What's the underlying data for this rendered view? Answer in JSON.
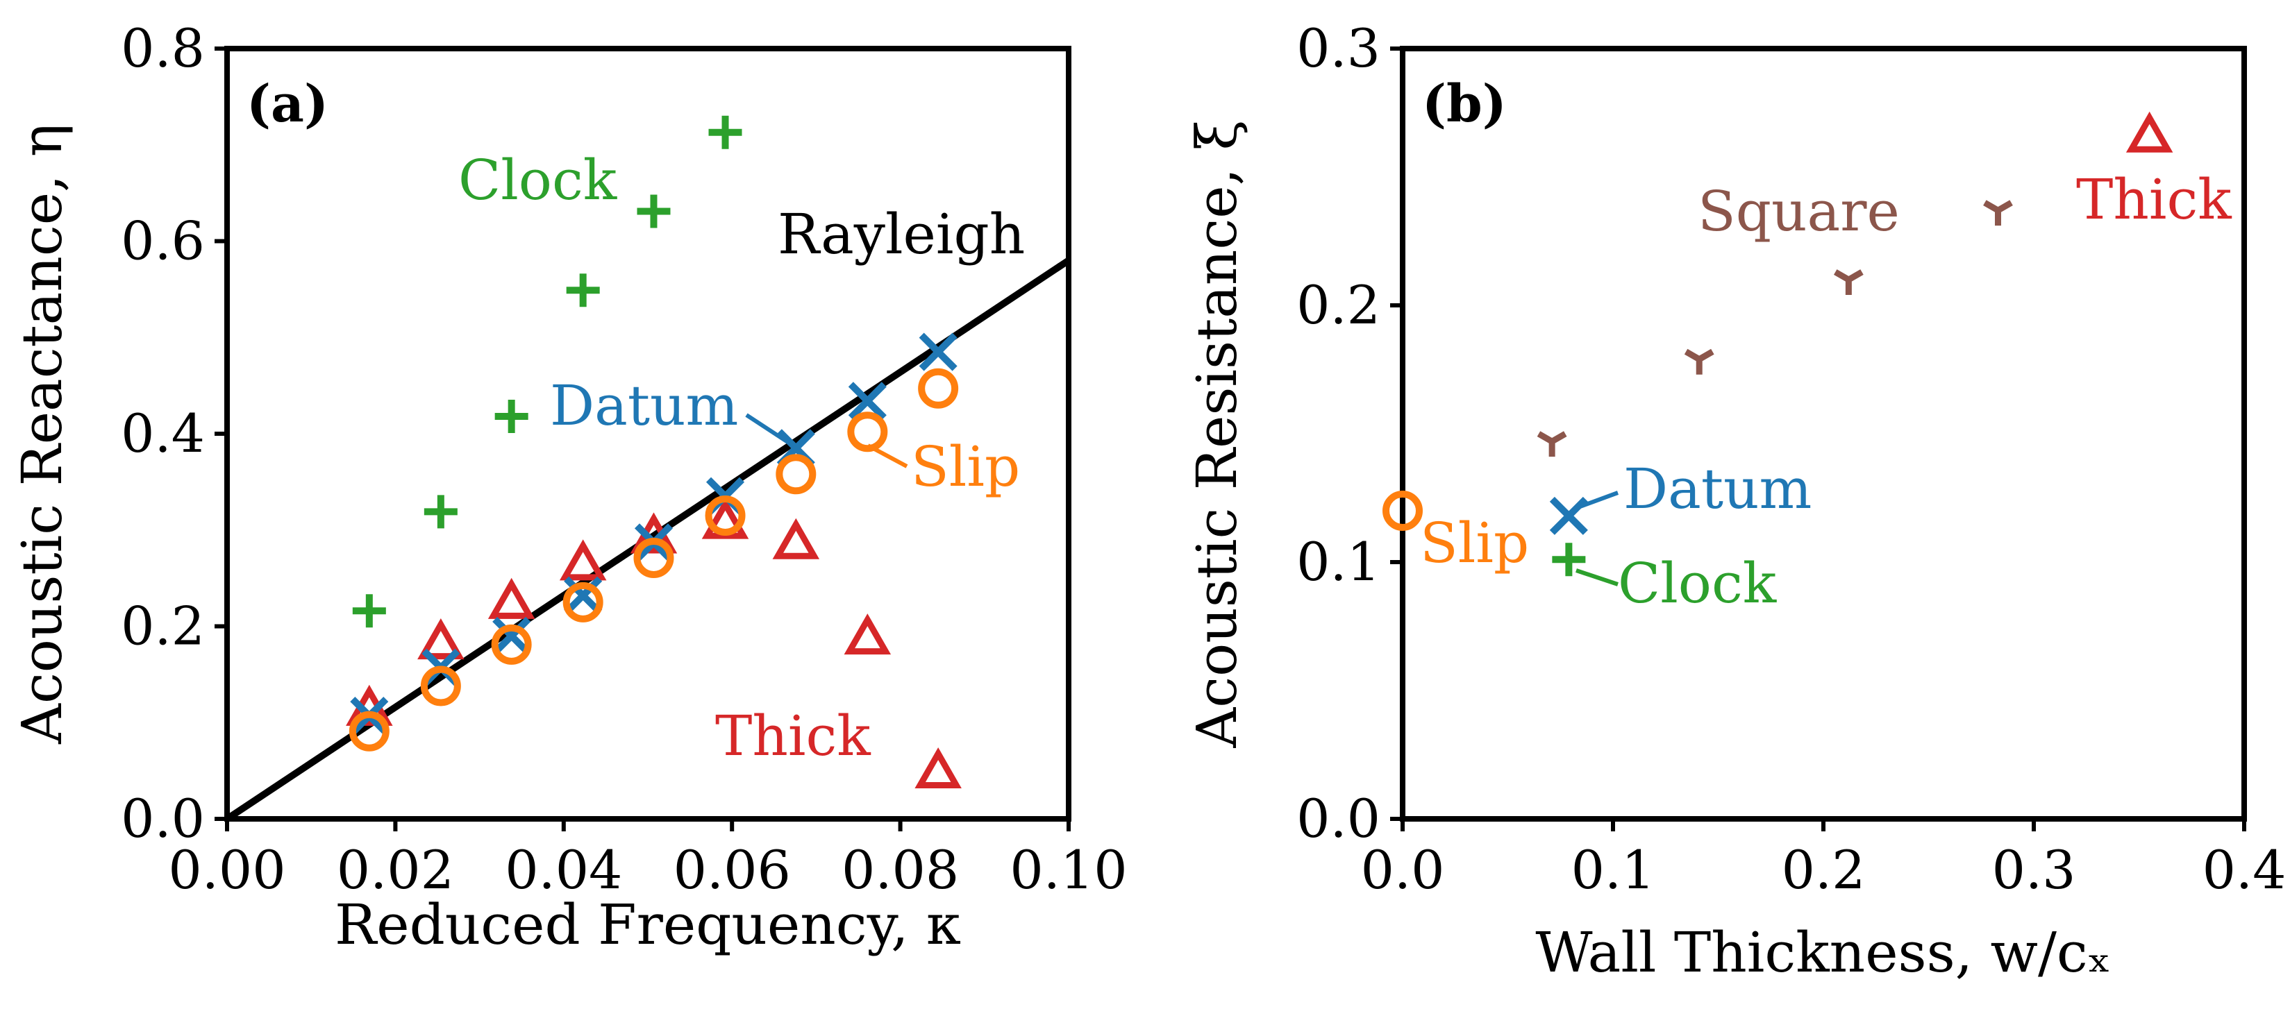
{
  "colors": {
    "datum": "#1f77b4",
    "slip": "#ff7f0e",
    "clock": "#2ca02c",
    "thick": "#d62728",
    "square": "#8c564b",
    "rayleigh": "#000000"
  },
  "chart_data": [
    {
      "type": "scatter",
      "panel_label": "(a)",
      "xlabel": "Reduced Frequency, κ",
      "ylabel": "Acoustic Reactance, η",
      "xlim": [
        0.0,
        0.1
      ],
      "ylim": [
        0.0,
        0.8
      ],
      "xticks": [
        0.0,
        0.02,
        0.04,
        0.06,
        0.08,
        0.1
      ],
      "xtick_labels": [
        "0.00",
        "0.02",
        "0.04",
        "0.06",
        "0.08",
        "0.10"
      ],
      "yticks": [
        0.0,
        0.2,
        0.4,
        0.6,
        0.8
      ],
      "ytick_labels": [
        "0.0",
        "0.2",
        "0.4",
        "0.6",
        "0.8"
      ],
      "line": {
        "name": "Rayleigh",
        "x": [
          0.0,
          0.1
        ],
        "y": [
          0.0,
          0.58
        ]
      },
      "series": [
        {
          "name": "Datum",
          "marker": "x",
          "color_key": "datum",
          "x": [
            0.0169,
            0.0254,
            0.0338,
            0.0423,
            0.0507,
            0.0592,
            0.0676,
            0.0761,
            0.0845
          ],
          "y": [
            0.107,
            0.157,
            0.19,
            0.232,
            0.287,
            0.335,
            0.385,
            0.434,
            0.485
          ]
        },
        {
          "name": "Slip",
          "marker": "o",
          "color_key": "slip",
          "x": [
            0.0169,
            0.0254,
            0.0338,
            0.0423,
            0.0507,
            0.0592,
            0.0676,
            0.0761,
            0.0845
          ],
          "y": [
            0.091,
            0.138,
            0.181,
            0.225,
            0.271,
            0.315,
            0.358,
            0.402,
            0.447
          ]
        },
        {
          "name": "Clock",
          "marker": "+",
          "color_key": "clock",
          "x": [
            0.0169,
            0.0254,
            0.0338,
            0.0423,
            0.0507,
            0.0592
          ],
          "y": [
            0.216,
            0.319,
            0.418,
            0.549,
            0.631,
            0.713
          ]
        },
        {
          "name": "Thick",
          "marker": "triangle",
          "color_key": "thick",
          "x": [
            0.0169,
            0.0254,
            0.0338,
            0.0423,
            0.0507,
            0.0592,
            0.0676,
            0.0761,
            0.0845
          ],
          "y": [
            0.114,
            0.183,
            0.225,
            0.265,
            0.293,
            0.308,
            0.287,
            0.188,
            0.049
          ]
        }
      ],
      "annotations": [
        {
          "text": "Clock",
          "color_key": "clock"
        },
        {
          "text": "Rayleigh",
          "color_key": "rayleigh"
        },
        {
          "text": "Datum",
          "color_key": "datum"
        },
        {
          "text": "Slip",
          "color_key": "slip"
        },
        {
          "text": "Thick",
          "color_key": "thick"
        }
      ]
    },
    {
      "type": "scatter",
      "panel_label": "(b)",
      "xlabel": "Wall Thickness, w/cₓ",
      "ylabel": "Acoustic Resistance, ξ",
      "xlim": [
        0.0,
        0.4
      ],
      "ylim": [
        0.0,
        0.3
      ],
      "xticks": [
        0.0,
        0.1,
        0.2,
        0.3,
        0.4
      ],
      "xtick_labels": [
        "0.0",
        "0.1",
        "0.2",
        "0.3",
        "0.4"
      ],
      "yticks": [
        0.0,
        0.1,
        0.2,
        0.3
      ],
      "ytick_labels": [
        "0.0",
        "0.1",
        "0.2",
        "0.3"
      ],
      "series": [
        {
          "name": "Datum",
          "marker": "x",
          "color_key": "datum",
          "x": [
            0.079
          ],
          "y": [
            0.118
          ]
        },
        {
          "name": "Slip",
          "marker": "o",
          "color_key": "slip",
          "x": [
            0.0
          ],
          "y": [
            0.12
          ]
        },
        {
          "name": "Clock",
          "marker": "+",
          "color_key": "clock",
          "x": [
            0.079
          ],
          "y": [
            0.101
          ]
        },
        {
          "name": "Square",
          "marker": "tri_down",
          "color_key": "square",
          "x": [
            0.071,
            0.141,
            0.212,
            0.283
          ],
          "y": [
            0.147,
            0.179,
            0.21,
            0.237
          ]
        },
        {
          "name": "Thick",
          "marker": "triangle",
          "color_key": "thick",
          "x": [
            0.355
          ],
          "y": [
            0.266
          ]
        }
      ],
      "annotations": [
        {
          "text": "Square",
          "color_key": "square"
        },
        {
          "text": "Thick",
          "color_key": "thick"
        },
        {
          "text": "Datum",
          "color_key": "datum"
        },
        {
          "text": "Slip",
          "color_key": "slip"
        },
        {
          "text": "Clock",
          "color_key": "clock"
        }
      ]
    }
  ]
}
